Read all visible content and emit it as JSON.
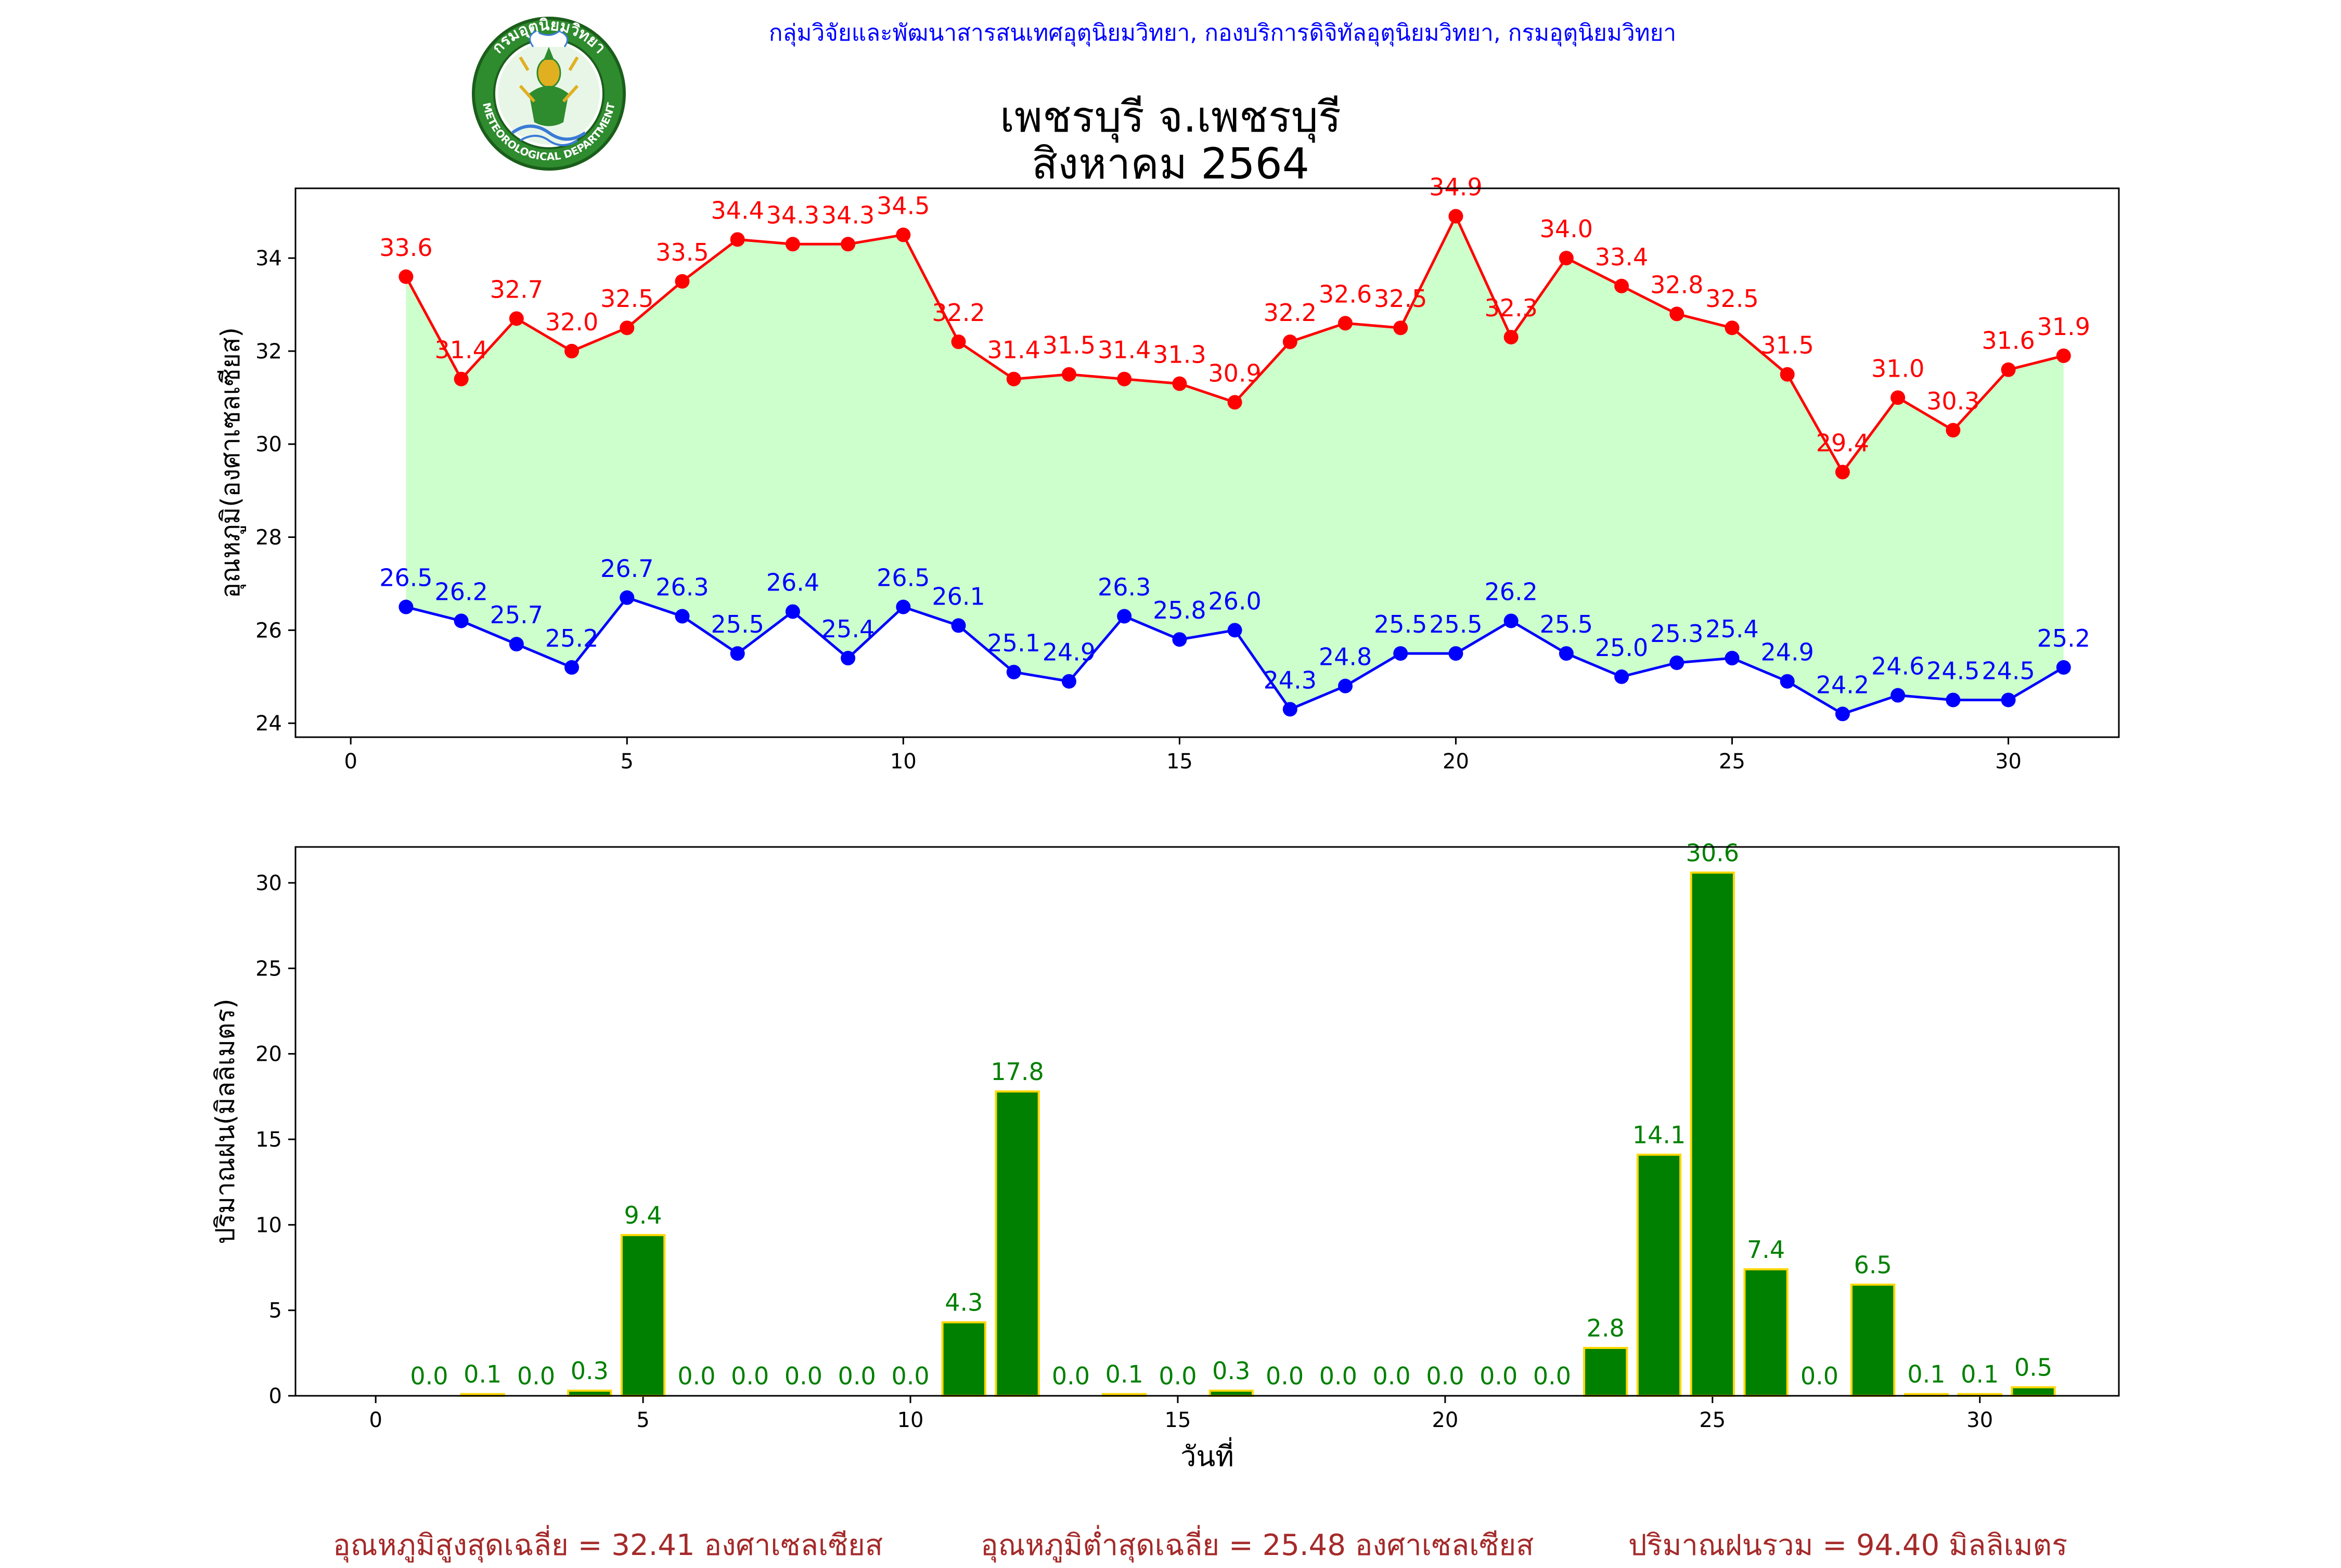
{
  "header": {
    "org_line": "กลุ่มวิจัยและพัฒนาสารสนเทศอุตุนิยมวิทยา, กองบริการดิจิทัลอุตุนิยมวิทยา, กรมอุตุนิยมวิทยา",
    "title_line1": "เพชรบุรี จ.เพชรบุรี",
    "title_line2": "สิงหาคม 2564",
    "logo": {
      "name": "meteorological-department-seal",
      "text_top": "กรมอุตุนิยมวิทยา",
      "text_bottom": "METEOROLOGICAL DEPARTMENT"
    }
  },
  "colors": {
    "max_temp": "#ff0000",
    "min_temp": "#0000ff",
    "temp_fill": "#ccffcc",
    "rain_bar": "#008000",
    "rain_edge": "#ffd700",
    "footer_text": "#a52a2a",
    "org_text": "#0000ff"
  },
  "chart_data": [
    {
      "type": "line",
      "ylabel": "อุณหภูมิ(องศาเซลเซียส)",
      "xlabel": "",
      "xlim": [
        -1,
        32
      ],
      "ylim": [
        23.7,
        35.5
      ],
      "xticks": [
        0,
        5,
        10,
        15,
        20,
        25,
        30
      ],
      "yticks": [
        24,
        26,
        28,
        30,
        32,
        34
      ],
      "fill_between_series": true,
      "x": [
        1,
        2,
        3,
        4,
        5,
        6,
        7,
        8,
        9,
        10,
        11,
        12,
        13,
        14,
        15,
        16,
        17,
        18,
        19,
        20,
        21,
        22,
        23,
        24,
        25,
        26,
        27,
        28,
        29,
        30,
        31
      ],
      "series": [
        {
          "key": "max",
          "values": [
            33.6,
            31.4,
            32.7,
            32.0,
            32.5,
            33.5,
            34.4,
            34.3,
            34.3,
            34.5,
            32.2,
            31.4,
            31.5,
            31.4,
            31.3,
            30.9,
            32.2,
            32.6,
            32.5,
            34.9,
            32.3,
            34.0,
            33.4,
            32.8,
            32.5,
            31.5,
            29.4,
            31.0,
            30.3,
            31.6,
            31.9
          ]
        },
        {
          "key": "min",
          "values": [
            26.5,
            26.2,
            25.7,
            25.2,
            26.7,
            26.3,
            25.5,
            26.4,
            25.4,
            26.5,
            26.1,
            25.1,
            24.9,
            26.3,
            25.8,
            26.0,
            24.3,
            24.8,
            25.5,
            25.5,
            26.2,
            25.5,
            25.0,
            25.3,
            25.4,
            24.9,
            24.2,
            24.6,
            24.5,
            24.5,
            25.2
          ]
        }
      ]
    },
    {
      "type": "bar",
      "ylabel": "ปริมาณฝน(มิลลิเมตร)",
      "xlabel": "วันที่",
      "xlim": [
        -1.5,
        32.6
      ],
      "ylim": [
        0,
        32.1
      ],
      "xticks": [
        0,
        5,
        10,
        15,
        20,
        25,
        30
      ],
      "yticks": [
        0,
        5,
        10,
        15,
        20,
        25,
        30
      ],
      "x": [
        1,
        2,
        3,
        4,
        5,
        6,
        7,
        8,
        9,
        10,
        11,
        12,
        13,
        14,
        15,
        16,
        17,
        18,
        19,
        20,
        21,
        22,
        23,
        24,
        25,
        26,
        27,
        28,
        29,
        30,
        31
      ],
      "values": [
        0.0,
        0.1,
        0.0,
        0.3,
        9.4,
        0.0,
        0.0,
        0.0,
        0.0,
        0.0,
        4.3,
        17.8,
        0.0,
        0.1,
        0.0,
        0.3,
        0.0,
        0.0,
        0.0,
        0.0,
        0.0,
        0.0,
        2.8,
        14.1,
        30.6,
        7.4,
        0.0,
        6.5,
        0.1,
        0.1,
        0.5
      ]
    }
  ],
  "footer": {
    "avg_max": "อุณหภูมิสูงสุดเฉลี่ย = 32.41 องศาเซลเซียส",
    "avg_min": "อุณหภูมิต่ำสุดเฉลี่ย = 25.48 องศาเซลเซียส",
    "total_rain": "ปริมาณฝนรวม = 94.40 มิลลิเมตร"
  }
}
